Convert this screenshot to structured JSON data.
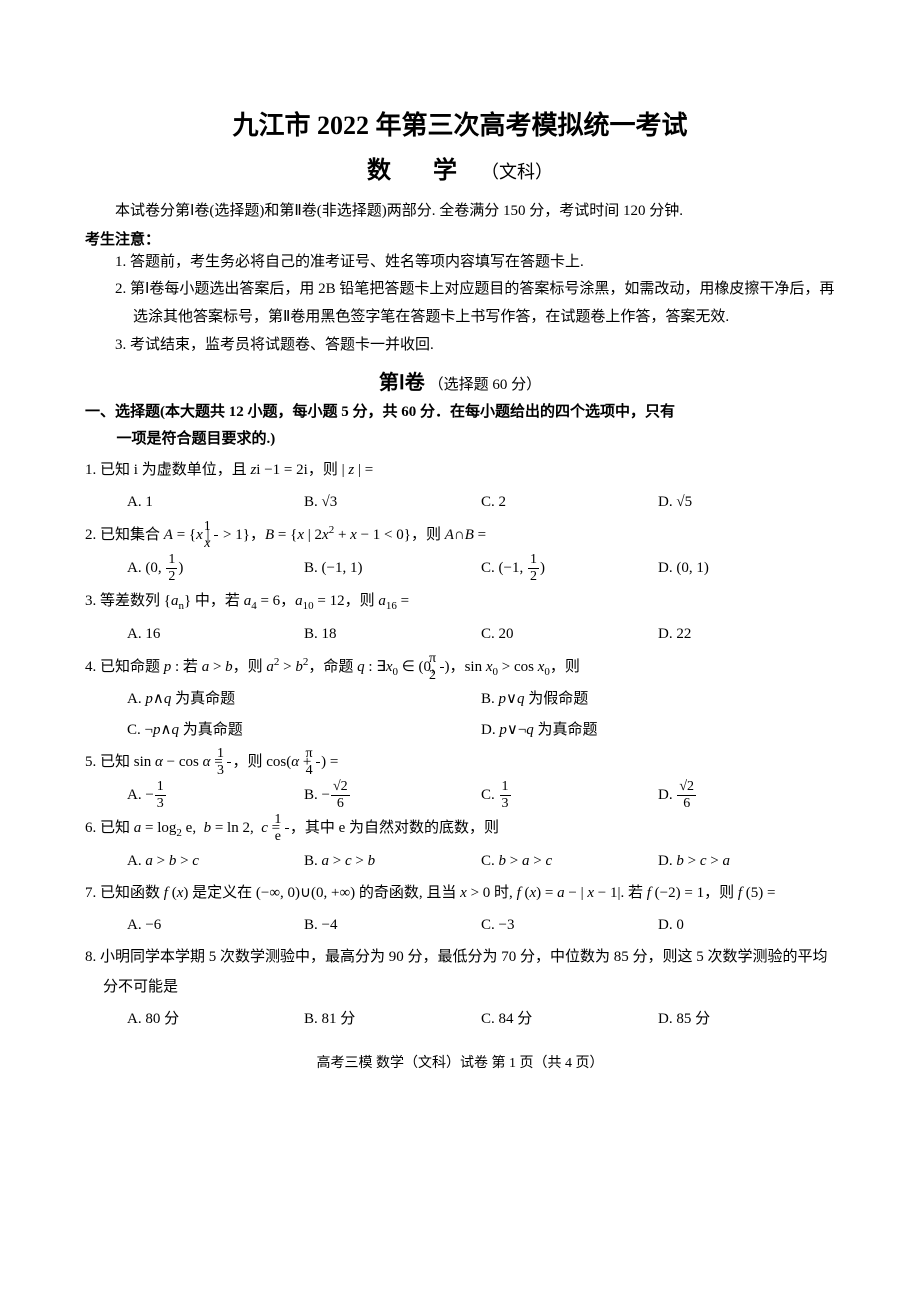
{
  "title": "九江市 2022 年第三次高考模拟统一考试",
  "subtitle_subject": "数  学",
  "subtitle_type": "（文科）",
  "intro": "本试卷分第Ⅰ卷(选择题)和第Ⅱ卷(非选择题)两部分. 全卷满分 150 分，考试时间 120 分钟.",
  "notice_header": "考生注意：",
  "notices": [
    "1. 答题前，考生务必将自己的准考证号、姓名等项内容填写在答题卡上.",
    "2. 第Ⅰ卷每小题选出答案后，用 2B 铅笔把答题卡上对应题目的答案标号涂黑，如需改动，用橡皮擦干净后，再选涂其他答案标号，第Ⅱ卷用黑色签字笔在答题卡上书写作答，在试题卷上作答，答案无效.",
    "3. 考试结束，监考员将试题卷、答题卡一并收回."
  ],
  "volume_title": "第Ⅰ卷",
  "volume_note": "（选择题 60 分）",
  "section_header_line1": "一、选择题(本大题共 12 小题，每小题 5 分，共 60 分．在每小题给出的四个选项中，只有",
  "section_header_line2": "一项是符合题目要求的.)",
  "q1_stem_prefix": "1. 已知 i 为虚数单位，且 ",
  "q1_math": "z i − 1 = 2i",
  "q1_stem_suffix": "，则 | z | =",
  "q1": {
    "A": "A. 1",
    "B": "B. √3",
    "C": "C. 2",
    "D": "D. √5"
  },
  "q2_stem": "2. 已知集合 A = {x | 1/x > 1}，B = {x | 2x² + x − 1 < 0}，则 A∩B =",
  "q2": {
    "A": "A. (0, 1/2)",
    "B": "B. (−1, 1)",
    "C": "C. (−1, 1/2)",
    "D": "D. (0, 1)"
  },
  "q3_stem": "3. 等差数列 {aₙ} 中，若 a₄ = 6，a₁₀ = 12，则 a₁₆ =",
  "q3": {
    "A": "A. 16",
    "B": "B. 18",
    "C": "C. 20",
    "D": "D. 22"
  },
  "q4_stem": "4. 已知命题 p : 若 a > b，则 a² > b²，命题 q : ∃x₀ ∈ (0, π/2)，sin x₀ > cos x₀，则",
  "q4": {
    "A": "A. p∧q 为真命题",
    "B": "B. p∨q 为假命题",
    "C": "C. ¬p∧q 为真命题",
    "D": "D. p∨¬q 为真命题"
  },
  "q5_stem": "5. 已知 sin α − cos α = 1/3，则 cos(α + π/4) =",
  "q5": {
    "A": "A. −1/3",
    "B": "B. −√2/6",
    "C": "C. 1/3",
    "D": "D. √2/6"
  },
  "q6_stem": "6. 已知 a = log₂ e, b = ln 2, c = 1/e，其中 e 为自然对数的底数，则",
  "q6": {
    "A": "A. a > b > c",
    "B": "B. a > c > b",
    "C": "C. b > a > c",
    "D": "D. b > c > a"
  },
  "q7_stem": "7. 已知函数 f(x) 是定义在 (−∞,0)∪(0,+∞) 的奇函数, 且当 x > 0 时, f(x) = a − |x − 1|. 若 f(−2) = 1，则 f(5) =",
  "q7": {
    "A": "A. −6",
    "B": "B. −4",
    "C": "C. −3",
    "D": "D. 0"
  },
  "q8_stem": "8. 小明同学本学期 5 次数学测验中，最高分为 90 分，最低分为 70 分，中位数为 85 分，则这 5 次数学测验的平均分不可能是",
  "q8": {
    "A": "A. 80 分",
    "B": "B. 81 分",
    "C": "C. 84 分",
    "D": "D. 85 分"
  },
  "footer": "高考三模  数学（文科）试卷  第 1 页（共 4 页）"
}
